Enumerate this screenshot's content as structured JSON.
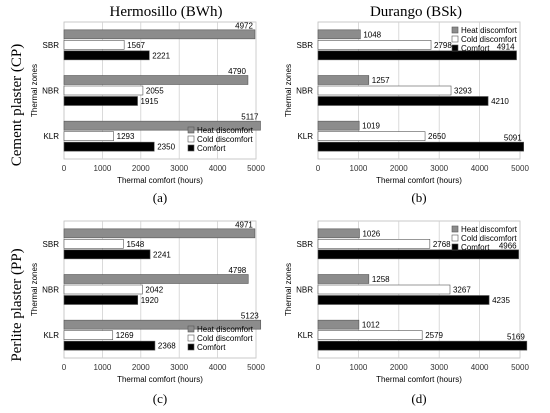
{
  "figure": {
    "column_titles": [
      "Hermosillo (BWh)",
      "Durango (BSk)"
    ],
    "row_titles": [
      "Cement plaster (CP)",
      "Perlite plaster (PP)"
    ]
  },
  "legend_labels": [
    "Heat discomfort",
    "Cold discomfort",
    "Comfort"
  ],
  "colors": {
    "heat": "#8c8c8c",
    "cold": "#ffffff",
    "comfort": "#000000"
  },
  "chart_data": [
    {
      "type": "bar",
      "orientation": "horizontal",
      "panel_label": "(a)",
      "categories": [
        "SBR",
        "NBR",
        "KLR"
      ],
      "xlabel": "Thermal comfort (hours)",
      "ylabel": "Thermal zones",
      "xlim": [
        0,
        5000
      ],
      "xticks": [
        0,
        1000,
        2000,
        3000,
        4000,
        5000
      ],
      "grid": true,
      "legend_position": "bottom-right",
      "series": [
        {
          "name": "Heat discomfort",
          "values": [
            4972,
            4790,
            5117
          ]
        },
        {
          "name": "Cold discomfort",
          "values": [
            1567,
            2055,
            1293
          ]
        },
        {
          "name": "Comfort",
          "values": [
            2221,
            1915,
            2350
          ]
        }
      ]
    },
    {
      "type": "bar",
      "orientation": "horizontal",
      "panel_label": "(b)",
      "categories": [
        "SBR",
        "NBR",
        "KLR"
      ],
      "xlabel": "Thermal comfort (hours)",
      "ylabel": "Thermal zones",
      "xlim": [
        0,
        5000
      ],
      "xticks": [
        0,
        1000,
        2000,
        3000,
        4000,
        5000
      ],
      "grid": true,
      "legend_position": "top-right",
      "series": [
        {
          "name": "Heat discomfort",
          "values": [
            1048,
            1257,
            1019
          ]
        },
        {
          "name": "Cold discomfort",
          "values": [
            2798,
            3293,
            2650
          ]
        },
        {
          "name": "Comfort",
          "values": [
            4914,
            4210,
            5091
          ]
        }
      ]
    },
    {
      "type": "bar",
      "orientation": "horizontal",
      "panel_label": "(c)",
      "categories": [
        "SBR",
        "NBR",
        "KLR"
      ],
      "xlabel": "Thermal comfort (hours)",
      "ylabel": "Thermal zones",
      "xlim": [
        0,
        5000
      ],
      "xticks": [
        0,
        1000,
        2000,
        3000,
        4000,
        5000
      ],
      "grid": true,
      "legend_position": "bottom-right",
      "series": [
        {
          "name": "Heat discomfort",
          "values": [
            4971,
            4798,
            5123
          ]
        },
        {
          "name": "Cold discomfort",
          "values": [
            1548,
            2042,
            1269
          ]
        },
        {
          "name": "Comfort",
          "values": [
            2241,
            1920,
            2368
          ]
        }
      ]
    },
    {
      "type": "bar",
      "orientation": "horizontal",
      "panel_label": "(d)",
      "categories": [
        "SBR",
        "NBR",
        "KLR"
      ],
      "xlabel": "Thermal comfort (hours)",
      "ylabel": "Thermal zones",
      "xlim": [
        0,
        5000
      ],
      "xticks": [
        0,
        1000,
        2000,
        3000,
        4000,
        5000
      ],
      "grid": true,
      "legend_position": "top-right",
      "series": [
        {
          "name": "Heat discomfort",
          "values": [
            1026,
            1258,
            1012
          ]
        },
        {
          "name": "Cold discomfort",
          "values": [
            2768,
            3267,
            2579
          ]
        },
        {
          "name": "Comfort",
          "values": [
            4966,
            4235,
            5169
          ]
        }
      ]
    }
  ]
}
